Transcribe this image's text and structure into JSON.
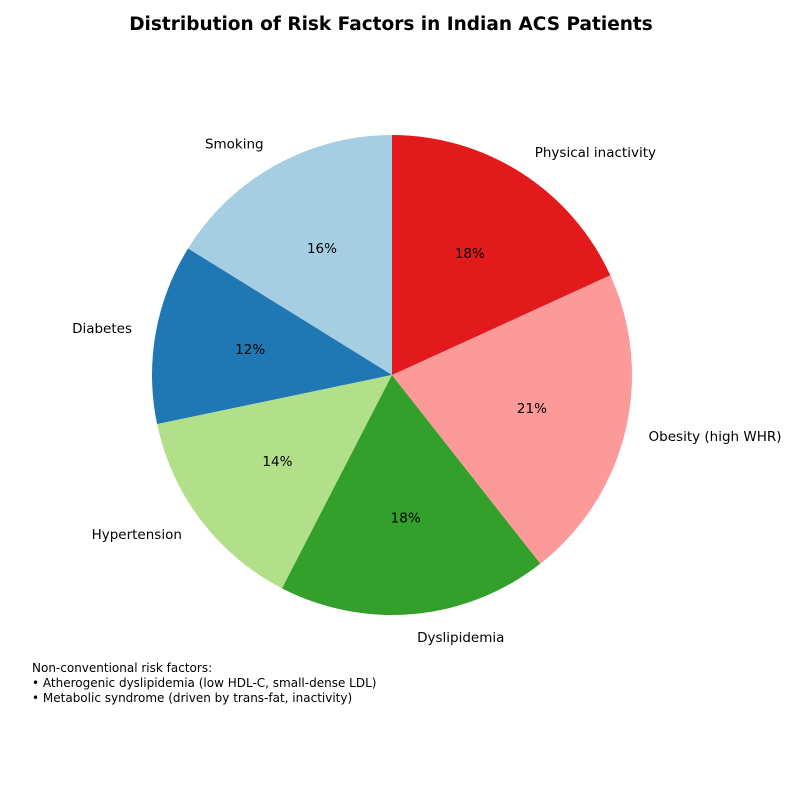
{
  "chart_data": {
    "type": "pie",
    "title": "Distribution of Risk Factors in Indian ACS Patients",
    "categories": [
      "Smoking",
      "Diabetes",
      "Hypertension",
      "Dyslipidemia",
      "Obesity (high WHR)",
      "Physical inactivity"
    ],
    "values": [
      16,
      12,
      14,
      18,
      21,
      18
    ],
    "value_labels": [
      "16%",
      "12%",
      "14%",
      "18%",
      "21%",
      "18%"
    ],
    "colors": [
      "#a6cee3",
      "#1f78b4",
      "#b2df8a",
      "#33a02c",
      "#fb9a99",
      "#e31a1c"
    ],
    "start_angle_deg": 90,
    "direction": "counterclockwise"
  },
  "annotation": {
    "heading": "Non-conventional risk factors:",
    "items": [
      "• Atherogenic dyslipidemia (low HDL-C, small-dense LDL)",
      "• Metabolic syndrome (driven by trans-fat, inactivity)"
    ]
  }
}
